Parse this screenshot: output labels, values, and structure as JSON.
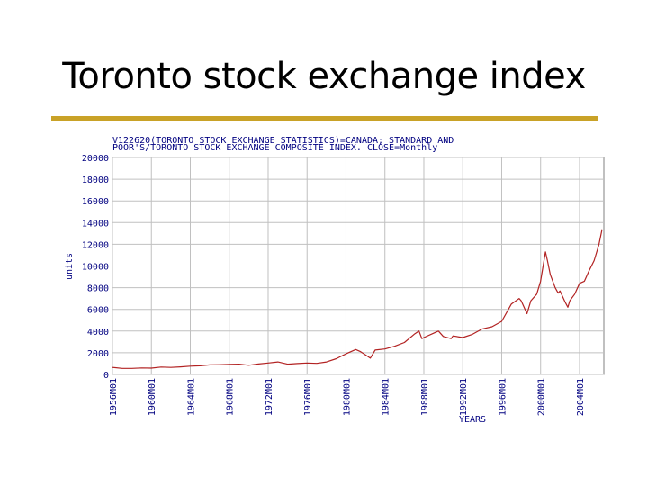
{
  "slide": {
    "title": "Toronto stock exchange index",
    "rule_color": "#c9a227"
  },
  "chart_data": {
    "type": "line",
    "title_line1": "V122620(TORONTO STOCK EXCHANGE STATISTICS)=CANADA; STANDARD AND",
    "title_line2": "POOR'S/TORONTO STOCK EXCHANGE COMPOSITE INDEX. CLOSE=Monthly",
    "xlabel": "YEARS",
    "ylabel": "units",
    "ylim": [
      0,
      20000
    ],
    "xlim": [
      1956,
      2006.5
    ],
    "y_ticks": [
      "0",
      "2000",
      "4000",
      "6000",
      "8000",
      "10000",
      "12000",
      "14000",
      "16000",
      "18000",
      "20000"
    ],
    "x_ticks": [
      "1956M01",
      "1960M01",
      "1964M01",
      "1968M01",
      "1972M01",
      "1976M01",
      "1980M01",
      "1984M01",
      "1988M01",
      "1992M01",
      "1996M01",
      "2000M01",
      "2004M01"
    ],
    "grid": true,
    "colors": {
      "line": "#b22222",
      "text": "#000080",
      "grid": "#c0c0c0",
      "frame": "#808080"
    },
    "series": [
      {
        "x": [
          1956.0,
          1957.0,
          1958.0,
          1959.0,
          1960.0,
          1961.0,
          1962.0,
          1963.0,
          1964.0,
          1965.0,
          1966.0,
          1967.0,
          1968.0,
          1969.0,
          1970.0,
          1971.0,
          1972.0,
          1973.0,
          1974.0,
          1975.0,
          1976.0,
          1977.0,
          1978.0,
          1979.0,
          1980.0,
          1980.5,
          1981.0,
          1981.5,
          1982.0,
          1982.5,
          1983.0,
          1984.0,
          1985.0,
          1986.0,
          1987.0,
          1987.5,
          1987.8,
          1988.0,
          1989.0,
          1989.5,
          1990.0,
          1990.8,
          1991.0,
          1992.0,
          1993.0,
          1994.0,
          1995.0,
          1996.0,
          1997.0,
          1997.8,
          1998.0,
          1998.6,
          1999.0,
          1999.6,
          2000.0,
          2000.5,
          2000.7,
          2001.0,
          2001.5,
          2001.8,
          2002.0,
          2002.5,
          2002.8,
          2003.0,
          2003.5,
          2004.0,
          2004.5,
          2005.0,
          2005.5,
          2006.0,
          2006.3
        ],
        "y": [
          650,
          560,
          560,
          600,
          580,
          680,
          650,
          700,
          760,
          800,
          880,
          900,
          920,
          950,
          850,
          960,
          1050,
          1150,
          950,
          1000,
          1050,
          1020,
          1150,
          1450,
          1900,
          2100,
          2300,
          2100,
          1800,
          1500,
          2250,
          2350,
          2600,
          2950,
          3700,
          4000,
          3300,
          3400,
          3800,
          4000,
          3500,
          3300,
          3550,
          3400,
          3700,
          4200,
          4400,
          4900,
          6500,
          7000,
          6800,
          5600,
          6800,
          7400,
          8600,
          11300,
          10500,
          9200,
          8000,
          7500,
          7700,
          6700,
          6200,
          6800,
          7400,
          8400,
          8600,
          9600,
          10500,
          12000,
          13300
        ]
      }
    ]
  }
}
